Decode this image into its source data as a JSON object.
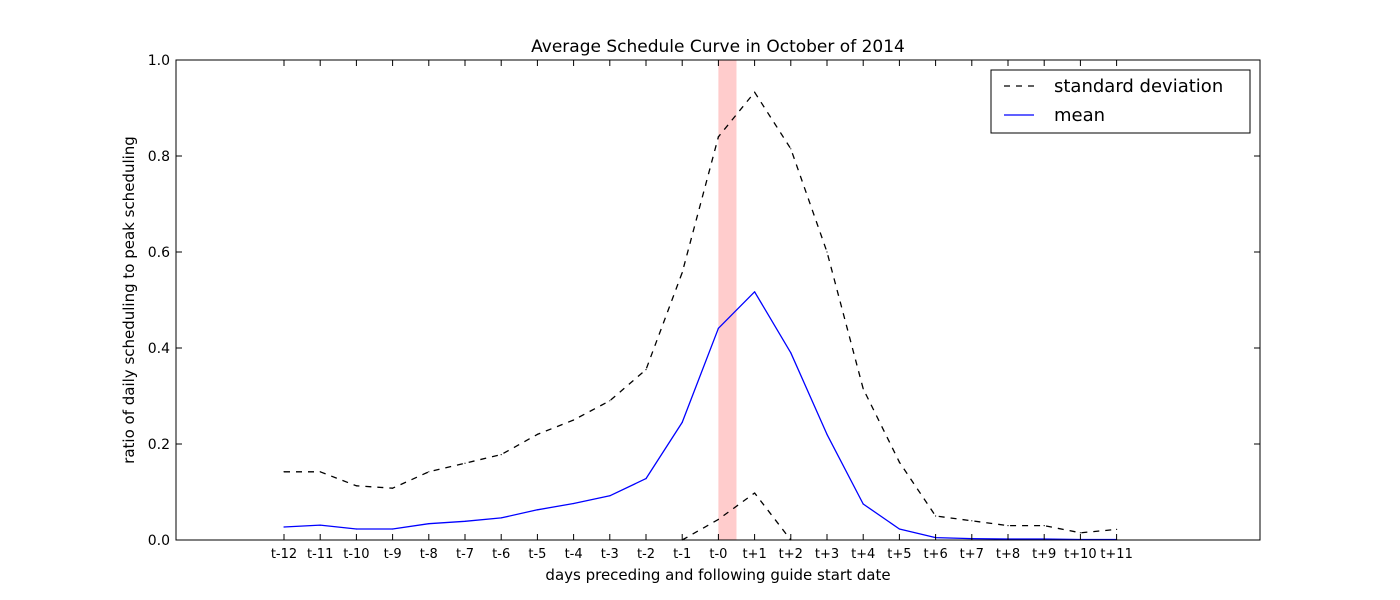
{
  "chart_data": {
    "type": "line",
    "title": "Average Schedule Curve in October of 2014",
    "xlabel": "days preceding and following guide start date",
    "ylabel": "ratio of daily scheduling to peak scheduling",
    "ylim": [
      0.0,
      1.0
    ],
    "yticks": [
      "0.0",
      "0.2",
      "0.4",
      "0.6",
      "0.8",
      "1.0"
    ],
    "categories": [
      "t-12",
      "t-11",
      "t-10",
      "t-9",
      "t-8",
      "t-7",
      "t-6",
      "t-5",
      "t-4",
      "t-3",
      "t-2",
      "t-1",
      "t-0",
      "t+1",
      "t+2",
      "t+3",
      "t+4",
      "t+5",
      "t+6",
      "t+7",
      "t+8",
      "t+9",
      "t+10",
      "t+11"
    ],
    "highlight_band": {
      "from": "t-0",
      "to_fraction_of_step": 0.5,
      "color": "#ffcccc"
    },
    "legend_position": "top-right",
    "grid": false,
    "series": [
      {
        "name": "standard deviation",
        "style": "dashed",
        "color": "#000000",
        "values": [
          0.142,
          0.142,
          0.113,
          0.108,
          0.142,
          0.16,
          0.178,
          0.22,
          0.25,
          0.29,
          0.355,
          0.557,
          0.84,
          0.933,
          0.815,
          0.6,
          0.315,
          0.162,
          0.05,
          0.04,
          0.03,
          0.03,
          0.015,
          0.022
        ]
      },
      {
        "name": "standard deviation lower",
        "style": "dashed",
        "color": "#000000",
        "values": [
          null,
          null,
          null,
          null,
          null,
          null,
          null,
          null,
          null,
          null,
          null,
          0.0,
          0.043,
          0.098,
          0.0,
          null,
          null,
          null,
          null,
          null,
          null,
          null,
          null,
          null
        ]
      },
      {
        "name": "mean",
        "style": "solid",
        "color": "#0000ff",
        "values": [
          0.027,
          0.031,
          0.023,
          0.023,
          0.034,
          0.039,
          0.046,
          0.063,
          0.076,
          0.092,
          0.128,
          0.245,
          0.441,
          0.517,
          0.39,
          0.22,
          0.075,
          0.023,
          0.005,
          0.003,
          0.002,
          0.002,
          0.001,
          0.001
        ]
      }
    ],
    "legend": [
      {
        "label": "standard deviation",
        "style": "dashed",
        "color": "#000000"
      },
      {
        "label": "mean",
        "style": "solid",
        "color": "#0000ff"
      }
    ]
  }
}
